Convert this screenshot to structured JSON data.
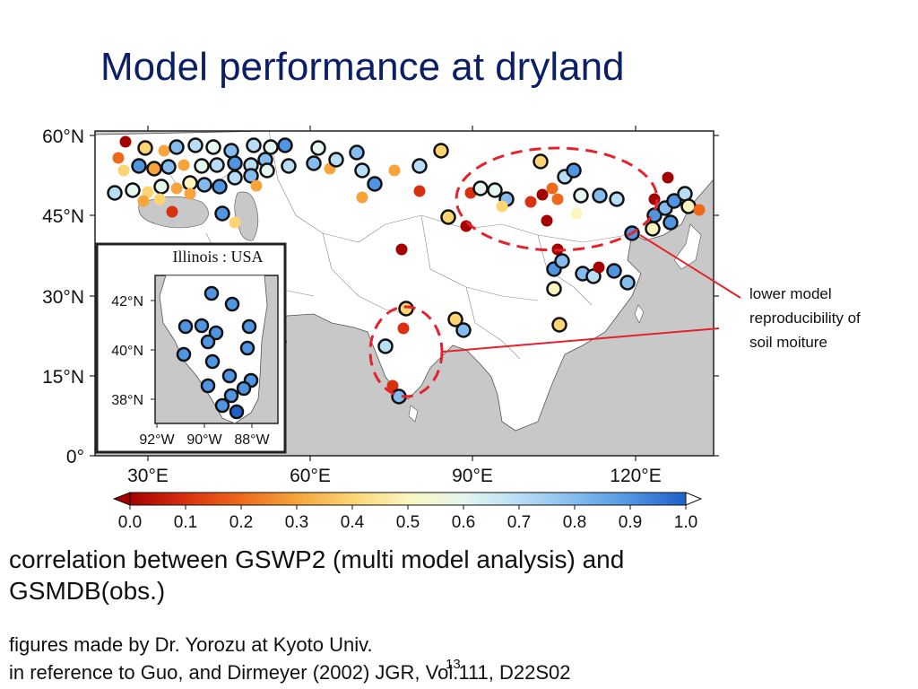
{
  "title": "Model performance at dryland",
  "map": {
    "lat_labels": [
      "60°N",
      "45°N",
      "30°N",
      "15°N",
      "0°"
    ],
    "lon_labels": [
      "30°E",
      "60°E",
      "90°E",
      "120°E"
    ]
  },
  "inset": {
    "title": "Illinois : USA",
    "lat_labels": [
      "42°N",
      "40°N",
      "38°N"
    ],
    "lon_labels": [
      "92°W",
      "90°W",
      "88°W"
    ]
  },
  "colorbar": {
    "labels": [
      "0.0",
      "0.1",
      "0.2",
      "0.3",
      "0.4",
      "0.5",
      "0.6",
      "0.7",
      "0.8",
      "0.9",
      "1.0"
    ],
    "colors": [
      "#a50000",
      "#d9300f",
      "#ee6a1a",
      "#f6a43b",
      "#fbd573",
      "#fbf6bf",
      "#e4f6ee",
      "#b8ddf6",
      "#84bcef",
      "#4f95e2",
      "#1d5fcb"
    ]
  },
  "annotation": {
    "lines": [
      "lower model",
      "reproducibility of",
      "soil moiture"
    ]
  },
  "caption": "correlation between GSWP2 (multi model analysis) and GSMDB(obs.)",
  "credit": {
    "line1": "figures made by Dr. Yorozu at Kyoto Univ.",
    "line2": "in reference to Guo, and Dirmeyer (2002) JGR, Vol.111, D22S02"
  },
  "page_number": "13"
}
